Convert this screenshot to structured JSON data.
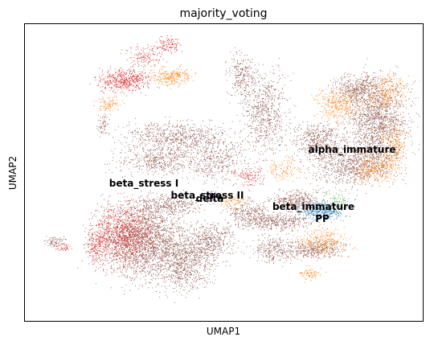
{
  "chart_data": {
    "type": "scatter",
    "title": "majority_voting",
    "xlabel": "UMAP1",
    "ylabel": "UMAP2",
    "grid": false,
    "ticks": false,
    "legend": "none",
    "cluster_labels": [
      "alpha_immature",
      "beta_stress I",
      "beta_stress II",
      "delta",
      "beta_immature",
      "PP"
    ],
    "series_colors": {
      "brown": "#8c564b",
      "orange": "#ff7f0e",
      "red": "#d62728",
      "blue": "#1f77b4",
      "purple": "#9467bd",
      "green": "#2ca02c"
    }
  }
}
